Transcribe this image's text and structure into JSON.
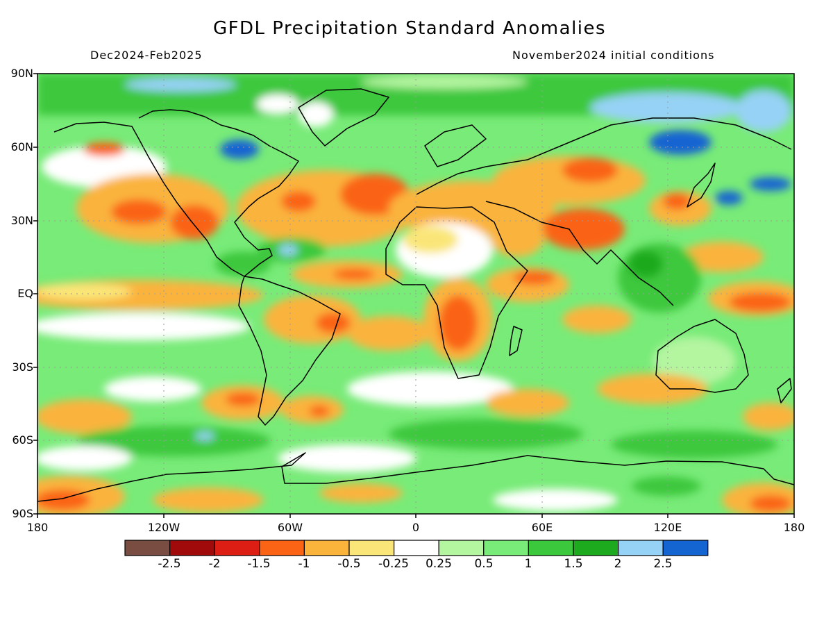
{
  "header": {
    "title": "GFDL Precipitation Standard Anomalies",
    "period": "Dec2024-Feb2025",
    "initial": "November2024 initial conditions"
  },
  "axes": {
    "lat_labels": [
      "90N",
      "60N",
      "30N",
      "EQ",
      "30S",
      "60S",
      "90S"
    ],
    "lon_labels": [
      "180",
      "120W",
      "60W",
      "0",
      "60E",
      "120E",
      "180"
    ]
  },
  "colorbar": {
    "colors": [
      "#7a4d42",
      "#a00a0a",
      "#dc1e14",
      "#fa6414",
      "#fab43c",
      "#fae678",
      "#ffffff",
      "#b4f5a0",
      "#78eb78",
      "#3cc83c",
      "#1eaa1e",
      "#96d2f5",
      "#1464d2"
    ],
    "labels": [
      "-2.5",
      "-2",
      "-1.5",
      "-1",
      "-0.5",
      "-0.25",
      "0.25",
      "0.5",
      "1",
      "1.5",
      "2",
      "2.5"
    ]
  }
}
